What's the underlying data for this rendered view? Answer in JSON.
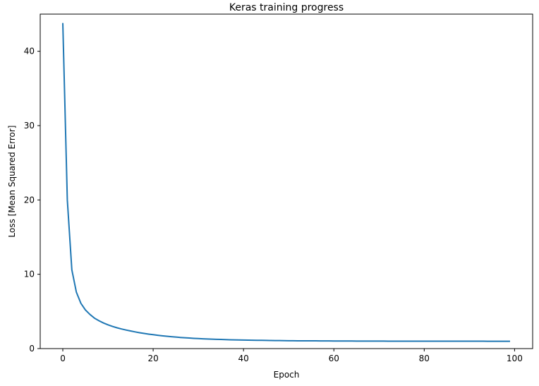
{
  "chart_data": {
    "type": "line",
    "title": "Keras training progress",
    "xlabel": "Epoch",
    "ylabel": "Loss [Mean Squared Error]",
    "xlim": [
      -5,
      104
    ],
    "ylim": [
      0,
      45
    ],
    "xticks": [
      0,
      20,
      40,
      60,
      80,
      100
    ],
    "yticks": [
      0,
      10,
      20,
      30,
      40
    ],
    "grid": false,
    "line_color": "#1f77b4",
    "series": [
      {
        "x_start": 0,
        "values": [
          43.8,
          20.0,
          10.6,
          7.6,
          6.1,
          5.2,
          4.6,
          4.1,
          3.75,
          3.45,
          3.2,
          2.98,
          2.8,
          2.64,
          2.5,
          2.37,
          2.25,
          2.14,
          2.04,
          1.95,
          1.87,
          1.79,
          1.72,
          1.66,
          1.6,
          1.55,
          1.5,
          1.46,
          1.42,
          1.38,
          1.35,
          1.32,
          1.29,
          1.27,
          1.25,
          1.23,
          1.21,
          1.19,
          1.18,
          1.16,
          1.15,
          1.14,
          1.13,
          1.12,
          1.11,
          1.1,
          1.09,
          1.08,
          1.08,
          1.07,
          1.06,
          1.06,
          1.05,
          1.05,
          1.04,
          1.04,
          1.04,
          1.03,
          1.03,
          1.03,
          1.02,
          1.02,
          1.02,
          1.02,
          1.02,
          1.01,
          1.01,
          1.01,
          1.01,
          1.01,
          1.01,
          1.01,
          1.0,
          1.0,
          1.0,
          1.0,
          1.0,
          1.0,
          1.0,
          1.0,
          1.0,
          1.0,
          1.0,
          1.0,
          1.0,
          1.0,
          1.0,
          1.0,
          1.0,
          1.0,
          1.0,
          1.0,
          1.0,
          1.0,
          0.99,
          0.99,
          0.99,
          0.99,
          0.99,
          0.99
        ]
      }
    ]
  }
}
